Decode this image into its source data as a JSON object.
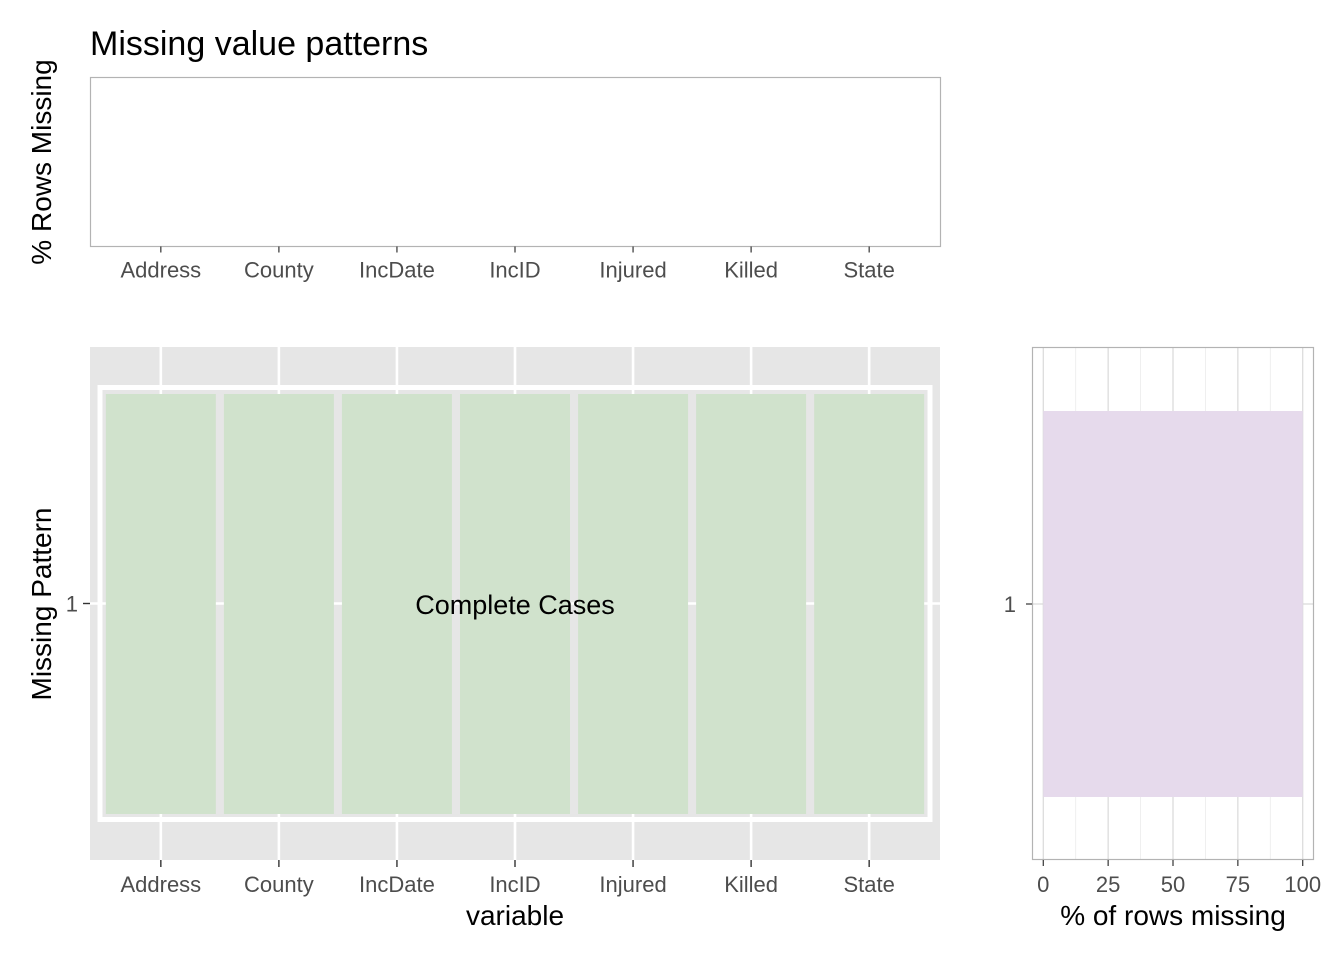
{
  "chart_data": [
    {
      "type": "bar",
      "title": "Missing value patterns",
      "ylabel": "% Rows Missing",
      "xlabel": "",
      "categories": [
        "Address",
        "County",
        "IncDate",
        "IncID",
        "Injured",
        "Killed",
        "State"
      ],
      "values": [
        0,
        0,
        0,
        0,
        0,
        0,
        0
      ],
      "grid": false
    },
    {
      "type": "heatmap",
      "xlabel": "variable",
      "ylabel": "Missing Pattern",
      "x": [
        "Address",
        "County",
        "IncDate",
        "IncID",
        "Injured",
        "Killed",
        "State"
      ],
      "y": [
        "1"
      ],
      "values": [
        [
          0,
          0,
          0,
          0,
          0,
          0,
          0
        ]
      ],
      "annotation": "Complete Cases",
      "color": "#D0E2CC"
    },
    {
      "type": "bar",
      "orientation": "horizontal",
      "xlabel": "% of rows missing",
      "ylabel": "",
      "categories": [
        "1"
      ],
      "values": [
        100
      ],
      "xlim": [
        0,
        100
      ],
      "xticks": [
        "0",
        "25",
        "50",
        "75",
        "100"
      ],
      "color": "#E6DAEC",
      "grid": true
    }
  ]
}
